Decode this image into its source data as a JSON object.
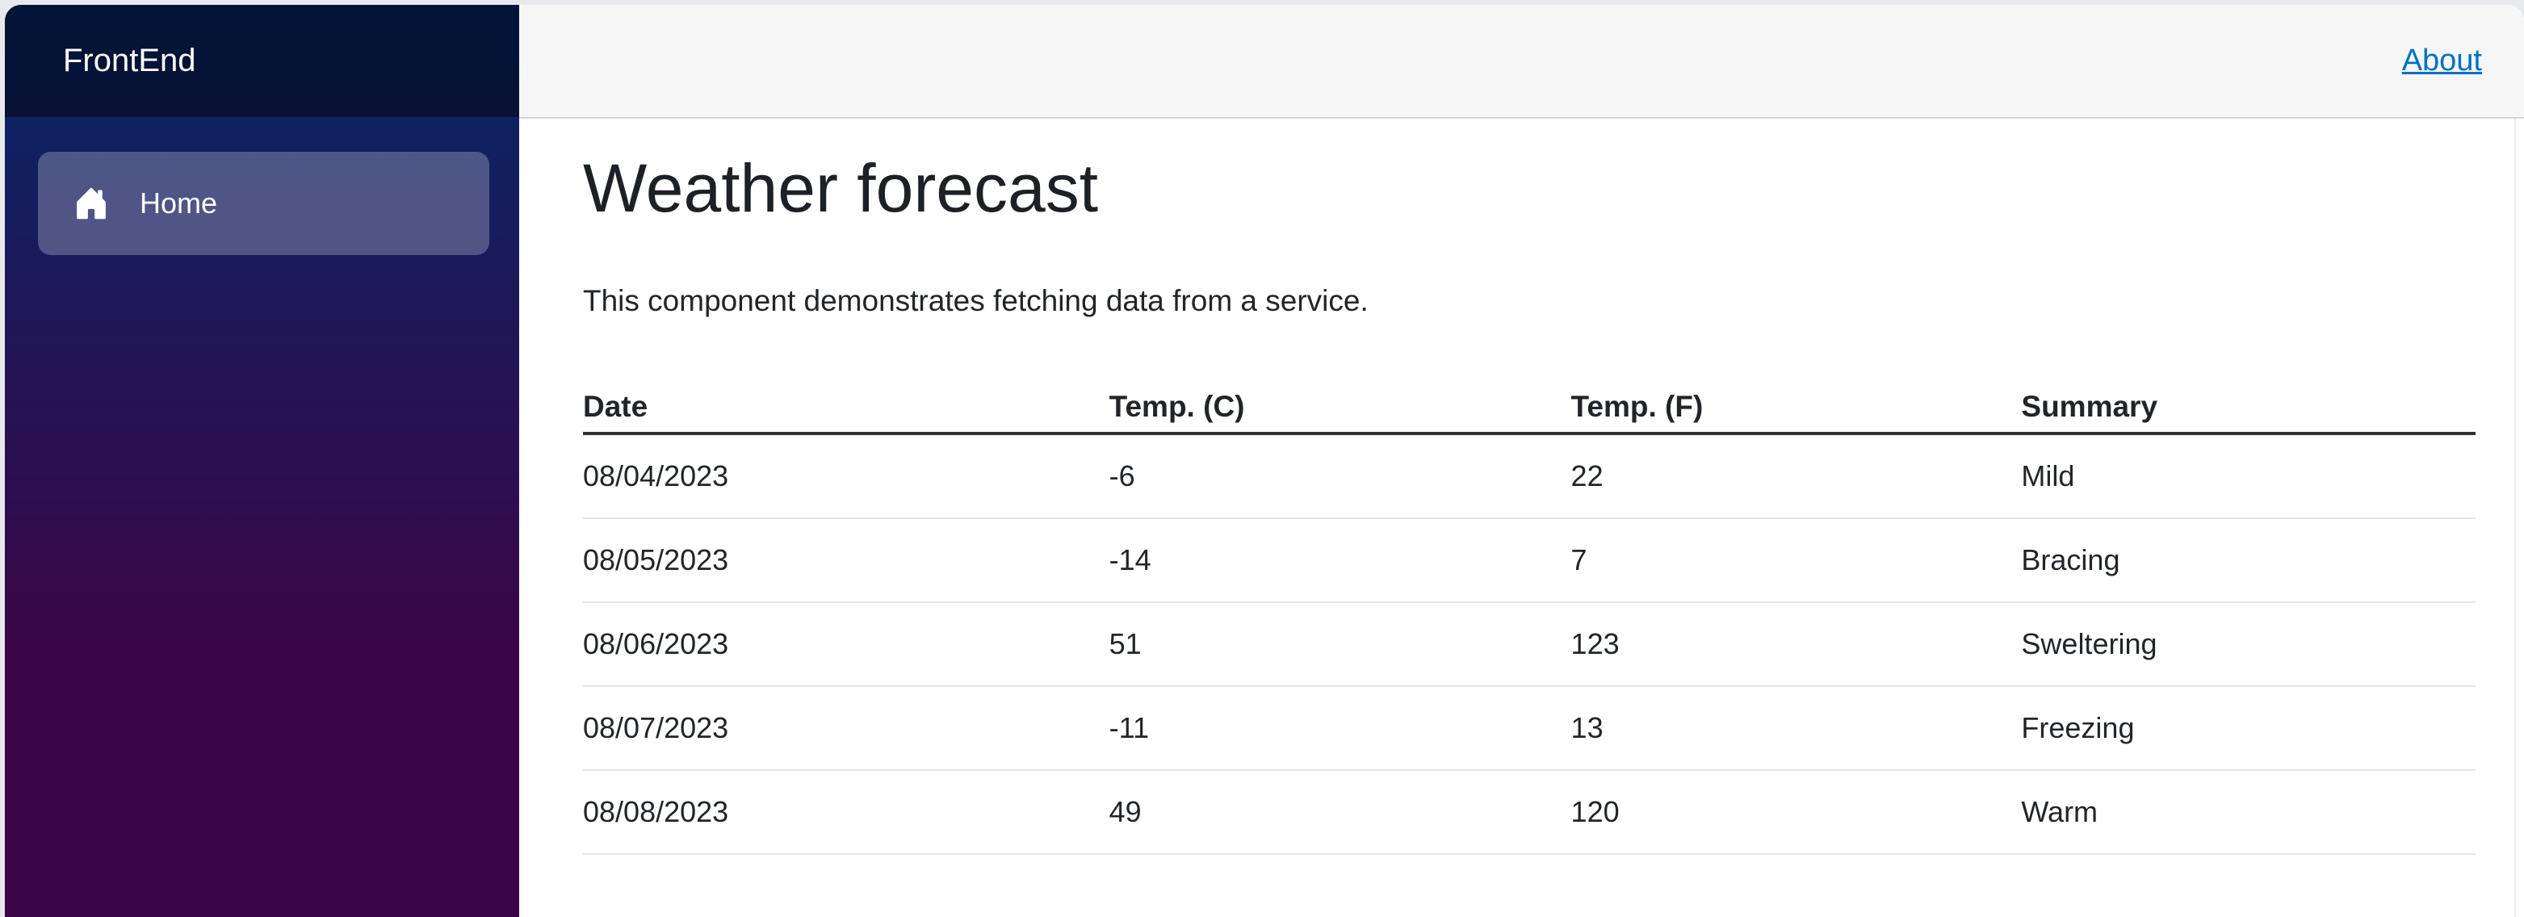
{
  "colors": {
    "grad-top": "#052767",
    "grad-bottom": "#3a0647",
    "link": "#0071c1",
    "topbar-bg": "#f6f6f7",
    "nav-active": "rgba(255,255,255,0.25)",
    "page-bg": "#e8e9ec"
  },
  "sidebar": {
    "brand": "FrontEnd",
    "items": [
      {
        "label": "Home",
        "icon": "house-icon",
        "active": true
      }
    ]
  },
  "topbar": {
    "about_label": "About"
  },
  "main": {
    "title": "Weather forecast",
    "description": "This component demonstrates fetching data from a service.",
    "table": {
      "columns": [
        "Date",
        "Temp. (C)",
        "Temp. (F)",
        "Summary"
      ],
      "col_widths": [
        "27.8%",
        "24.4%",
        "23.8%",
        "24%"
      ],
      "rows": [
        [
          "08/04/2023",
          "-6",
          "22",
          "Mild"
        ],
        [
          "08/05/2023",
          "-14",
          "7",
          "Bracing"
        ],
        [
          "08/06/2023",
          "51",
          "123",
          "Sweltering"
        ],
        [
          "08/07/2023",
          "-11",
          "13",
          "Freezing"
        ],
        [
          "08/08/2023",
          "49",
          "120",
          "Warm"
        ]
      ]
    }
  }
}
